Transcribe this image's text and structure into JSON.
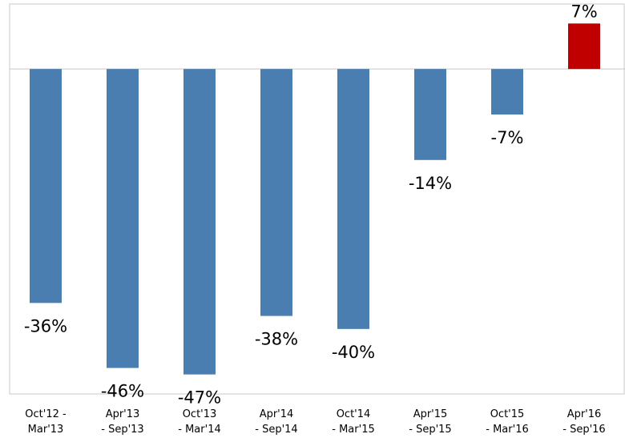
{
  "chart_data": {
    "type": "bar",
    "categories": [
      "Oct'12 -\nMar'13",
      "Apr'13\n- Sep'13",
      "Oct'13\n- Mar'14",
      "Apr'14\n- Sep'14",
      "Oct'14\n- Mar'15",
      "Apr'15\n- Sep'15",
      "Oct'15\n- Mar'16",
      "Apr'16\n- Sep'16"
    ],
    "values": [
      -36,
      -46,
      -47,
      -38,
      -40,
      -14,
      -7,
      7
    ],
    "value_labels": [
      "-36%",
      "-46%",
      "-47%",
      "-38%",
      "-40%",
      "-14%",
      "-7%",
      "7%"
    ],
    "colors": [
      "#4a7eb0",
      "#4a7eb0",
      "#4a7eb0",
      "#4a7eb0",
      "#4a7eb0",
      "#4a7eb0",
      "#4a7eb0",
      "#c00000"
    ],
    "ylim": [
      -50,
      10
    ]
  }
}
